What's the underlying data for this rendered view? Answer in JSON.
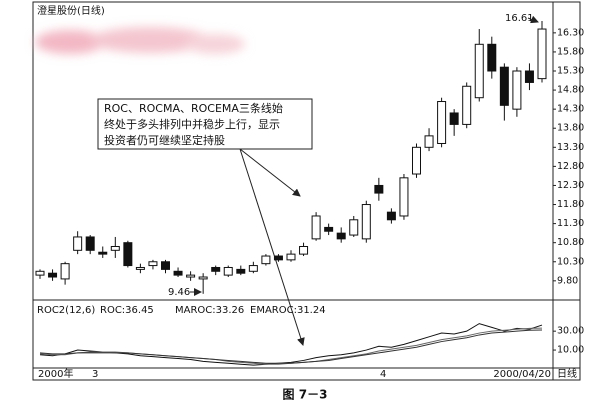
{
  "chart_data": [
    {
      "type": "candlestick",
      "title": "澄星股份(日线)",
      "ylim": [
        9.35,
        17.03
      ],
      "yticks": [
        {
          "value": 9.8,
          "label": "9.80"
        },
        {
          "value": 10.3,
          "label": "10.30"
        },
        {
          "value": 10.8,
          "label": "10.80"
        },
        {
          "value": 11.3,
          "label": "11.30"
        },
        {
          "value": 11.8,
          "label": "11.80"
        },
        {
          "value": 12.3,
          "label": "12.30"
        },
        {
          "value": 12.8,
          "label": "12.80"
        },
        {
          "value": 13.3,
          "label": "13.30"
        },
        {
          "value": 13.8,
          "label": "13.80"
        },
        {
          "value": 14.3,
          "label": "14.30"
        },
        {
          "value": 14.8,
          "label": "14.80"
        },
        {
          "value": 15.3,
          "label": "15.30"
        },
        {
          "value": 15.8,
          "label": "15.80"
        },
        {
          "value": 16.3,
          "label": "16.30"
        }
      ],
      "open": [
        9.95,
        10.0,
        9.85,
        10.6,
        10.95,
        10.55,
        10.6,
        10.8,
        10.1,
        10.2,
        10.3,
        10.05,
        9.9,
        9.85,
        10.15,
        9.95,
        10.1,
        10.05,
        10.25,
        10.45,
        10.35,
        10.5,
        10.9,
        11.2,
        11.05,
        11.0,
        10.9,
        12.3,
        11.6,
        11.5,
        12.6,
        13.3,
        13.4,
        14.2,
        13.9,
        14.6,
        16.0,
        15.4,
        14.3,
        15.3,
        15.1
      ],
      "high": [
        10.1,
        10.1,
        10.3,
        11.1,
        11.0,
        10.7,
        10.95,
        10.85,
        10.25,
        10.35,
        10.35,
        10.15,
        10.05,
        10.0,
        10.2,
        10.2,
        10.2,
        10.3,
        10.5,
        10.5,
        10.6,
        10.8,
        11.6,
        11.3,
        11.2,
        11.5,
        11.9,
        12.5,
        11.7,
        12.6,
        13.4,
        13.8,
        14.6,
        14.3,
        15.0,
        16.4,
        16.2,
        15.5,
        15.4,
        15.5,
        16.61
      ],
      "low": [
        9.85,
        9.8,
        9.7,
        10.5,
        10.5,
        10.4,
        10.4,
        10.15,
        10.0,
        10.1,
        10.0,
        9.9,
        9.8,
        9.46,
        9.95,
        9.9,
        9.95,
        10.0,
        10.2,
        10.3,
        10.3,
        10.45,
        10.85,
        11.0,
        10.8,
        10.95,
        10.8,
        11.9,
        11.3,
        11.4,
        12.5,
        13.2,
        13.3,
        13.6,
        13.8,
        14.5,
        15.1,
        14.0,
        14.1,
        14.8,
        15.0
      ],
      "close": [
        10.05,
        9.9,
        10.25,
        10.95,
        10.6,
        10.5,
        10.7,
        10.2,
        10.15,
        10.3,
        10.1,
        9.95,
        9.95,
        9.9,
        10.05,
        10.15,
        10.0,
        10.2,
        10.45,
        10.35,
        10.5,
        10.7,
        11.5,
        11.1,
        10.9,
        11.4,
        11.8,
        12.1,
        11.4,
        12.5,
        13.3,
        13.6,
        14.5,
        13.9,
        14.9,
        16.0,
        15.3,
        14.4,
        15.3,
        15.0,
        16.4
      ],
      "color": "#111111",
      "annotations": [
        "9.46",
        "16.61",
        "ROC、ROCMA、ROCEMA三条线始",
        "终处于多头排列中并稳步上行，显示",
        "投资者仍可继续坚定持股"
      ]
    },
    {
      "type": "line",
      "title": "ROC2(12,6)",
      "ylim": [
        -9,
        63
      ],
      "yticks": [
        {
          "value": 10,
          "label": "10.00"
        },
        {
          "value": 30,
          "label": "30.00"
        }
      ],
      "series": [
        {
          "name": "ROC:36.45",
          "color": "#111111",
          "values": [
            5,
            4,
            6,
            10,
            9,
            8,
            7,
            6,
            4,
            3,
            2,
            1,
            0,
            -2,
            -3,
            -4,
            -5,
            -6,
            -5,
            -4,
            -3,
            -1,
            2,
            4,
            5,
            7,
            10,
            14,
            13,
            16,
            20,
            24,
            28,
            27,
            30,
            38,
            34,
            30,
            33,
            32,
            36.45
          ]
        },
        {
          "name": "MAROC:33.26",
          "color": "#666666",
          "values": [
            6,
            5,
            5,
            7,
            8,
            8,
            8,
            7,
            6,
            5,
            4,
            3,
            2,
            1,
            0,
            -2,
            -3,
            -4,
            -5,
            -5,
            -4,
            -3,
            -2,
            0,
            2,
            4,
            6,
            9,
            11,
            13,
            15,
            18,
            21,
            23,
            25,
            28,
            30,
            31,
            32,
            33,
            33.26
          ]
        },
        {
          "name": "EMAROC:31.24",
          "color": "#333333",
          "values": [
            7,
            6,
            6,
            7,
            7,
            7,
            7,
            7,
            6,
            5,
            4,
            3,
            2,
            1,
            0,
            -1,
            -2,
            -3,
            -4,
            -4,
            -4,
            -3,
            -2,
            -1,
            1,
            3,
            5,
            7,
            9,
            11,
            13,
            16,
            19,
            21,
            23,
            26,
            28,
            29,
            30,
            31,
            31.24
          ]
        }
      ]
    }
  ],
  "footer": {
    "dates": [
      "2000年",
      "3",
      "4",
      "2000/04/20"
    ],
    "period": "日线",
    "caption": "图 7－3"
  }
}
